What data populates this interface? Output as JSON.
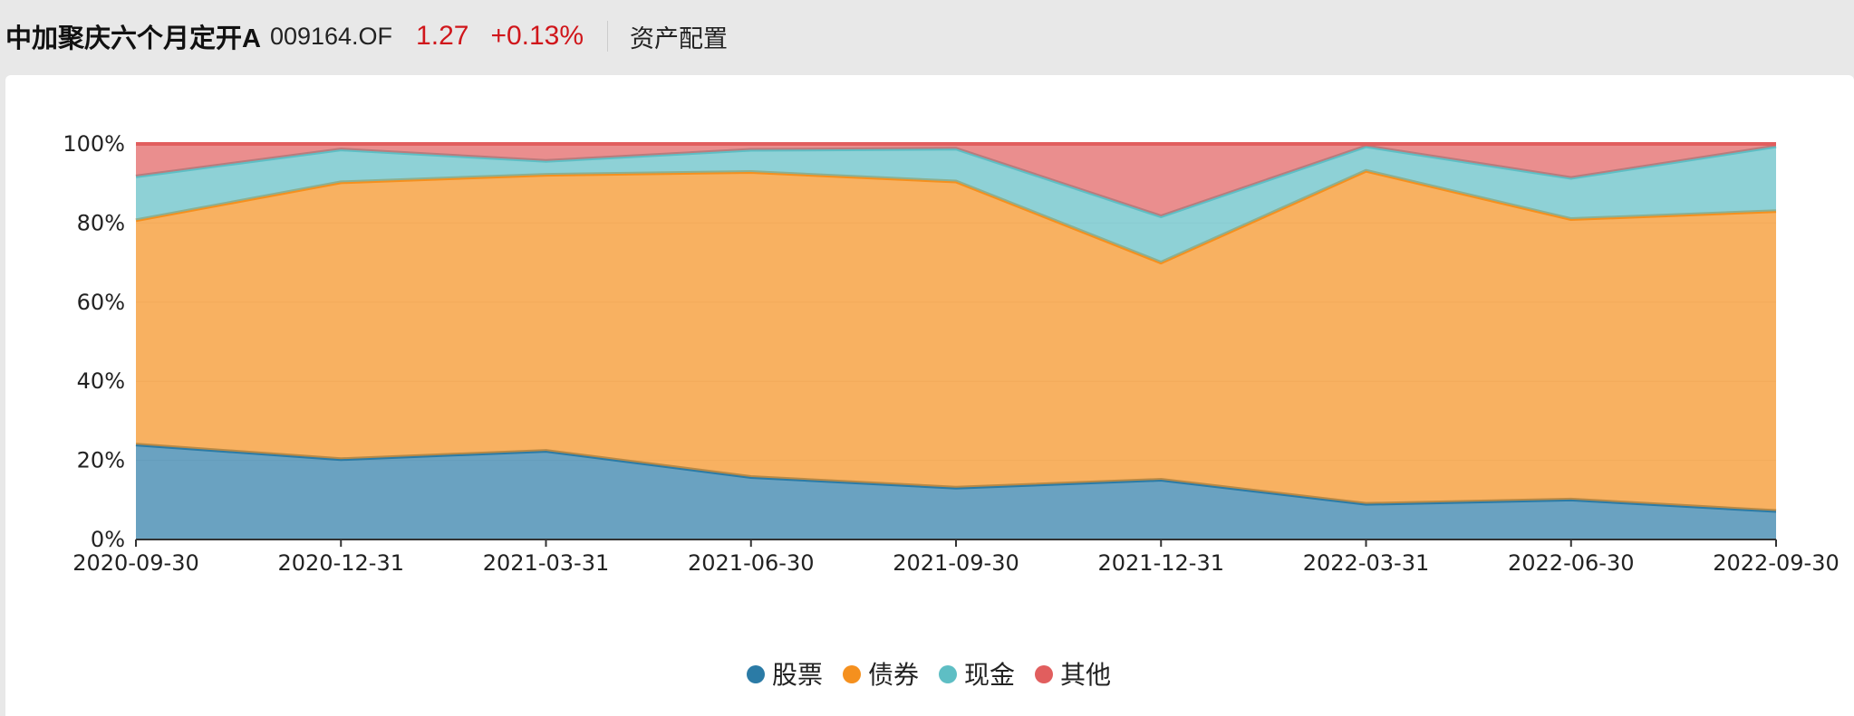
{
  "header": {
    "fund_name": "中加聚庆六个月定开A",
    "fund_code": "009164.OF",
    "price": "1.27",
    "change": "+0.13%",
    "section_title": "资产配置"
  },
  "chart_data": {
    "type": "area",
    "stacked": true,
    "categories": [
      "2020-09-30",
      "2020-12-31",
      "2021-03-31",
      "2021-06-30",
      "2021-09-30",
      "2021-12-31",
      "2022-03-31",
      "2022-06-30",
      "2022-09-30"
    ],
    "ylim": [
      0,
      100
    ],
    "y_ticks": [
      "0%",
      "20%",
      "40%",
      "60%",
      "80%",
      "100%"
    ],
    "grid": true,
    "legend_position": "bottom-center",
    "series": [
      {
        "name": "股票",
        "color": "#2b7ba6",
        "values": [
          24.0,
          20.3,
          22.4,
          15.8,
          13.1,
          15.1,
          9.0,
          10.1,
          7.2
        ]
      },
      {
        "name": "债券",
        "color": "#f5901e",
        "values": [
          56.7,
          70.0,
          69.8,
          77.1,
          77.4,
          54.9,
          84.2,
          70.9,
          75.8
        ]
      },
      {
        "name": "现金",
        "color": "#5ebec4",
        "values": [
          11.1,
          8.3,
          3.5,
          5.6,
          8.3,
          11.7,
          6.2,
          10.4,
          16.4
        ]
      },
      {
        "name": "其他",
        "color": "#e15e5e",
        "values": [
          8.2,
          1.4,
          4.3,
          1.5,
          1.2,
          18.3,
          0.6,
          8.6,
          0.6
        ]
      }
    ]
  }
}
